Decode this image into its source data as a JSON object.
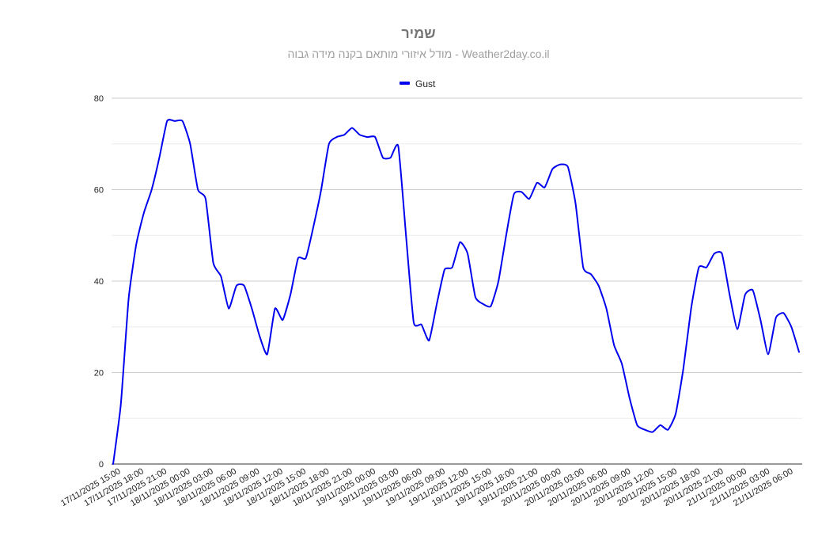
{
  "chart_data": {
    "type": "line",
    "title": "שמיר",
    "subtitle": "מודל איזורי מותאם בקנה מידה גבוה - Weather2day.co.il",
    "xlabel": "",
    "ylabel": "",
    "ylim": [
      0,
      80
    ],
    "y_ticks": [
      0,
      20,
      40,
      60,
      80
    ],
    "grid": true,
    "legend_position": "top",
    "x_tick_labels": [
      "17/11/2025 15:00",
      "17/11/2025 18:00",
      "17/11/2025 21:00",
      "18/11/2025 00:00",
      "18/11/2025 03:00",
      "18/11/2025 06:00",
      "18/11/2025 09:00",
      "18/11/2025 12:00",
      "18/11/2025 15:00",
      "18/11/2025 18:00",
      "18/11/2025 21:00",
      "19/11/2025 00:00",
      "19/11/2025 03:00",
      "19/11/2025 06:00",
      "19/11/2025 09:00",
      "19/11/2025 12:00",
      "19/11/2025 15:00",
      "19/11/2025 18:00",
      "19/11/2025 21:00",
      "20/11/2025 00:00",
      "20/11/2025 03:00",
      "20/11/2025 06:00",
      "20/11/2025 09:00",
      "20/11/2025 12:00",
      "20/11/2025 15:00",
      "20/11/2025 18:00",
      "20/11/2025 21:00",
      "21/11/2025 00:00",
      "21/11/2025 03:00",
      "21/11/2025 06:00"
    ],
    "series": [
      {
        "name": "Gust",
        "color": "#0000ee",
        "values": [
          0,
          13,
          36,
          48,
          55,
          60,
          67,
          75,
          75,
          75,
          70,
          60,
          58,
          44,
          41,
          34,
          39,
          39,
          34,
          28,
          24,
          34,
          31.5,
          37,
          45,
          45,
          52,
          60,
          70,
          71.5,
          72,
          73.5,
          72,
          71.5,
          71.5,
          67,
          67,
          69.5,
          50,
          31,
          30.5,
          27,
          35,
          42.5,
          43,
          48.5,
          46,
          36.5,
          35,
          34.5,
          40,
          50,
          59,
          59.5,
          58,
          61.5,
          60.5,
          64.5,
          65.5,
          65,
          57,
          43,
          41.5,
          39,
          34,
          26,
          22,
          14.5,
          8.5,
          7.5,
          7,
          8.5,
          7.5,
          11,
          21,
          34,
          43,
          43,
          46,
          46,
          37,
          29.5,
          37,
          38,
          31.5,
          24,
          32,
          33,
          30,
          24.5
        ]
      }
    ]
  }
}
